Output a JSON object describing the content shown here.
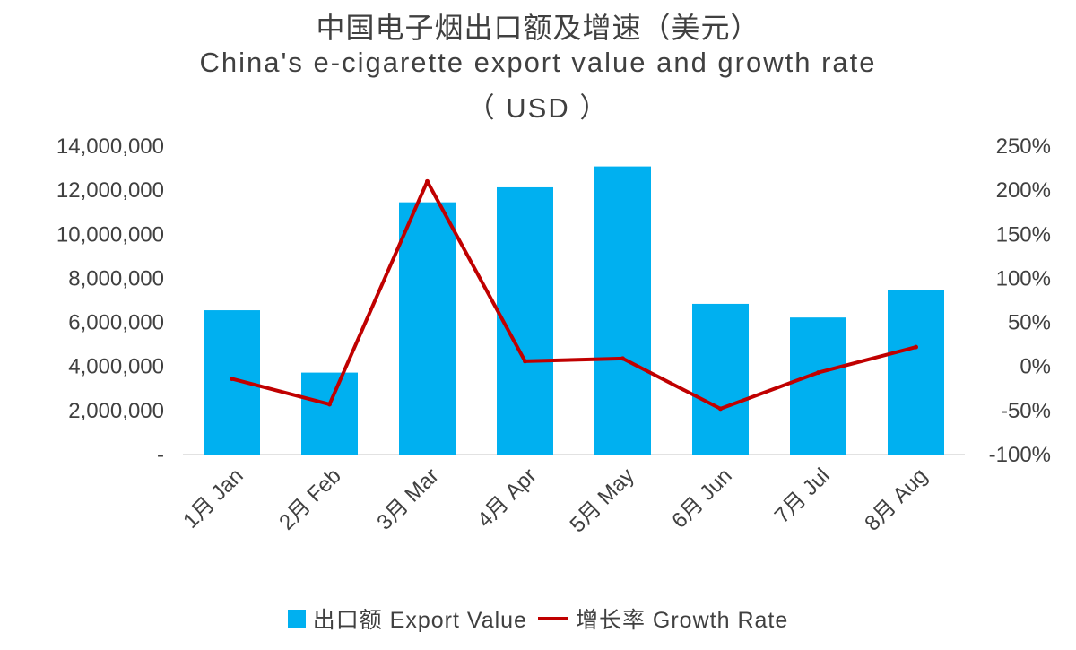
{
  "title_cn": "中国电子烟出口额及增速（美元）",
  "title_en": "China's e-cigarette export value and growth rate",
  "title_unit": "（ USD ）",
  "colors": {
    "bar": "#00b0f0",
    "line": "#c00000",
    "text": "#404040"
  },
  "chart_data": {
    "type": "bar",
    "categories": [
      "1月 Jan",
      "2月 Feb",
      "3月 Mar",
      "4月 Apr",
      "5月 May",
      "6月 Jun",
      "7月 Jul",
      "8月 Aug"
    ],
    "series": [
      {
        "name": "出口额 Export Value",
        "type": "bar",
        "axis": "left",
        "values": [
          6550000,
          3720000,
          11450000,
          12130000,
          13080000,
          6840000,
          6220000,
          7480000
        ]
      },
      {
        "name": "增长率 Growth Rate",
        "type": "line",
        "axis": "right",
        "values": [
          -14,
          -43,
          210,
          6,
          9,
          -48,
          -7,
          22
        ]
      }
    ],
    "y_left": {
      "ylim": [
        0,
        14000000
      ],
      "ticks": [
        "-",
        "2,000,000",
        "4,000,000",
        "6,000,000",
        "8,000,000",
        "10,000,000",
        "12,000,000",
        "14,000,000"
      ]
    },
    "y_right": {
      "ylim": [
        -100,
        250
      ],
      "ticks": [
        "-100%",
        "-50%",
        "0%",
        "50%",
        "100%",
        "150%",
        "200%",
        "250%"
      ]
    },
    "grid": false,
    "legend_position": "bottom"
  },
  "legend": {
    "bar_label": "出口额 Export Value",
    "line_label": "增长率 Growth Rate"
  }
}
